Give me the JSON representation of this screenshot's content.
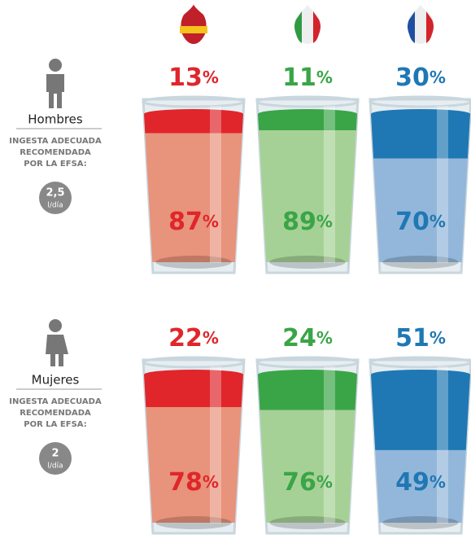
{
  "unit": "%",
  "rows": [
    {
      "label": "Hombres",
      "note": [
        "INGESTA ADECUADA",
        "RECOMENDADA",
        "POR LA EFSA:"
      ],
      "intake": "2,5",
      "intake_unit": "l/día",
      "glasses": [
        {
          "top": 13,
          "bottom": 87,
          "color": "#e0262b",
          "light": "#e8937b"
        },
        {
          "top": 11,
          "bottom": 89,
          "color": "#3aa547",
          "light": "#a6d196"
        },
        {
          "top": 30,
          "bottom": 70,
          "color": "#1f78b4",
          "light": "#93b7da"
        }
      ]
    },
    {
      "label": "Mujeres",
      "note": [
        "INGESTA ADECUADA",
        "RECOMENDADA",
        "POR LA EFSA:"
      ],
      "intake": "2",
      "intake_unit": "l/día",
      "glasses": [
        {
          "top": 22,
          "bottom": 78,
          "color": "#e0262b",
          "light": "#e8937b"
        },
        {
          "top": 24,
          "bottom": 76,
          "color": "#3aa547",
          "light": "#a6d196"
        },
        {
          "top": 51,
          "bottom": 49,
          "color": "#1f78b4",
          "light": "#93b7da"
        }
      ]
    }
  ]
}
